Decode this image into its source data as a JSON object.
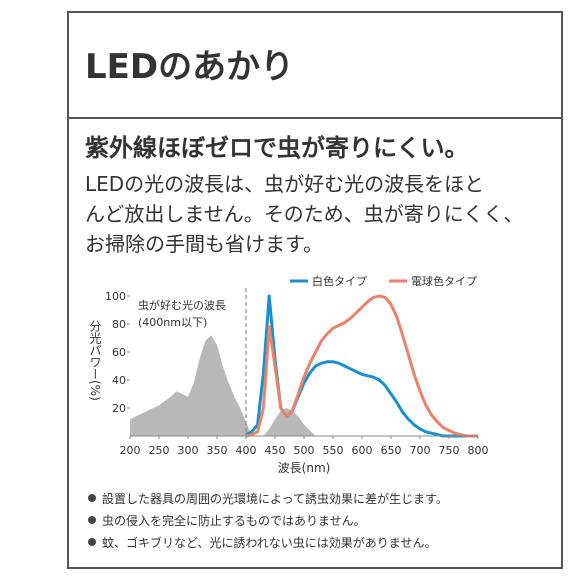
{
  "header": {
    "title": "LEDのあかり"
  },
  "headline": "紫外線ほぼゼロで虫が寄りにくい。",
  "body": [
    "LEDの光の波長は、虫が好む光の波長をほと",
    "んど放出しません。そのため、虫が寄りにくく、",
    "お掃除の手間も省けます。"
  ],
  "notes": [
    "設置した器具の周囲の光環境によって誘虫効果に差が生じます。",
    "虫の侵入を完全に防止するものではありません。",
    "蚊、ゴキブリなど、光に誘われない虫には効果がありません。"
  ],
  "chart_data": {
    "type": "line",
    "xlabel": "波長(nm)",
    "ylabel": "分光パワー(%)",
    "xlim": [
      200,
      800
    ],
    "ylim": [
      0,
      100
    ],
    "xticks": [
      200,
      250,
      300,
      350,
      400,
      450,
      500,
      550,
      600,
      650,
      700,
      750,
      800
    ],
    "yticks": [
      20,
      40,
      60,
      80,
      100
    ],
    "legend": "top-right",
    "x": [
      200,
      210,
      220,
      230,
      240,
      250,
      260,
      270,
      280,
      290,
      300,
      310,
      320,
      330,
      340,
      350,
      360,
      370,
      380,
      390,
      400,
      410,
      420,
      430,
      440,
      450,
      460,
      470,
      480,
      490,
      500,
      510,
      520,
      530,
      540,
      550,
      560,
      570,
      580,
      590,
      600,
      610,
      620,
      630,
      640,
      650,
      660,
      670,
      680,
      690,
      700,
      710,
      720,
      730,
      740,
      750,
      760,
      770,
      780,
      790,
      800
    ],
    "area": {
      "color": "#b8b8b8",
      "annotation": [
        "虫が好む光の波長",
        "(400nm以下)"
      ],
      "boundary": 400,
      "values": [
        12,
        14,
        16,
        18,
        20,
        22,
        25,
        28,
        32,
        30,
        28,
        38,
        55,
        68,
        72,
        65,
        50,
        38,
        28,
        20,
        10,
        0,
        0,
        0,
        5,
        12,
        18,
        20,
        18,
        14,
        8,
        4,
        0,
        null,
        null,
        null,
        null,
        null,
        null,
        null,
        null,
        null,
        null,
        null,
        null,
        null,
        null,
        null,
        null,
        null,
        null,
        null,
        null,
        null,
        null,
        null,
        null,
        null,
        null,
        null,
        null
      ]
    },
    "series": [
      {
        "name": "白色タイプ",
        "color": "#1a8fd0",
        "values": [
          null,
          null,
          null,
          null,
          null,
          null,
          null,
          null,
          null,
          null,
          null,
          null,
          null,
          null,
          null,
          null,
          null,
          null,
          null,
          null,
          1,
          3,
          8,
          45,
          100,
          55,
          20,
          14,
          18,
          28,
          38,
          45,
          50,
          52,
          53,
          53,
          52,
          50,
          48,
          46,
          44,
          43,
          42,
          40,
          36,
          30,
          24,
          17,
          12,
          8,
          5,
          3,
          2,
          1,
          0,
          0,
          0,
          0,
          0,
          0,
          0
        ]
      },
      {
        "name": "電球色タイプ",
        "color": "#e8826a",
        "values": [
          null,
          null,
          null,
          null,
          null,
          null,
          null,
          null,
          null,
          null,
          null,
          null,
          null,
          null,
          null,
          null,
          null,
          null,
          null,
          null,
          0,
          1,
          3,
          20,
          78,
          50,
          20,
          14,
          18,
          30,
          42,
          52,
          60,
          68,
          73,
          77,
          79,
          81,
          84,
          88,
          92,
          96,
          99,
          100,
          99,
          94,
          85,
          72,
          58,
          44,
          32,
          22,
          15,
          10,
          6,
          4,
          2,
          1,
          0,
          0,
          0
        ]
      }
    ]
  }
}
